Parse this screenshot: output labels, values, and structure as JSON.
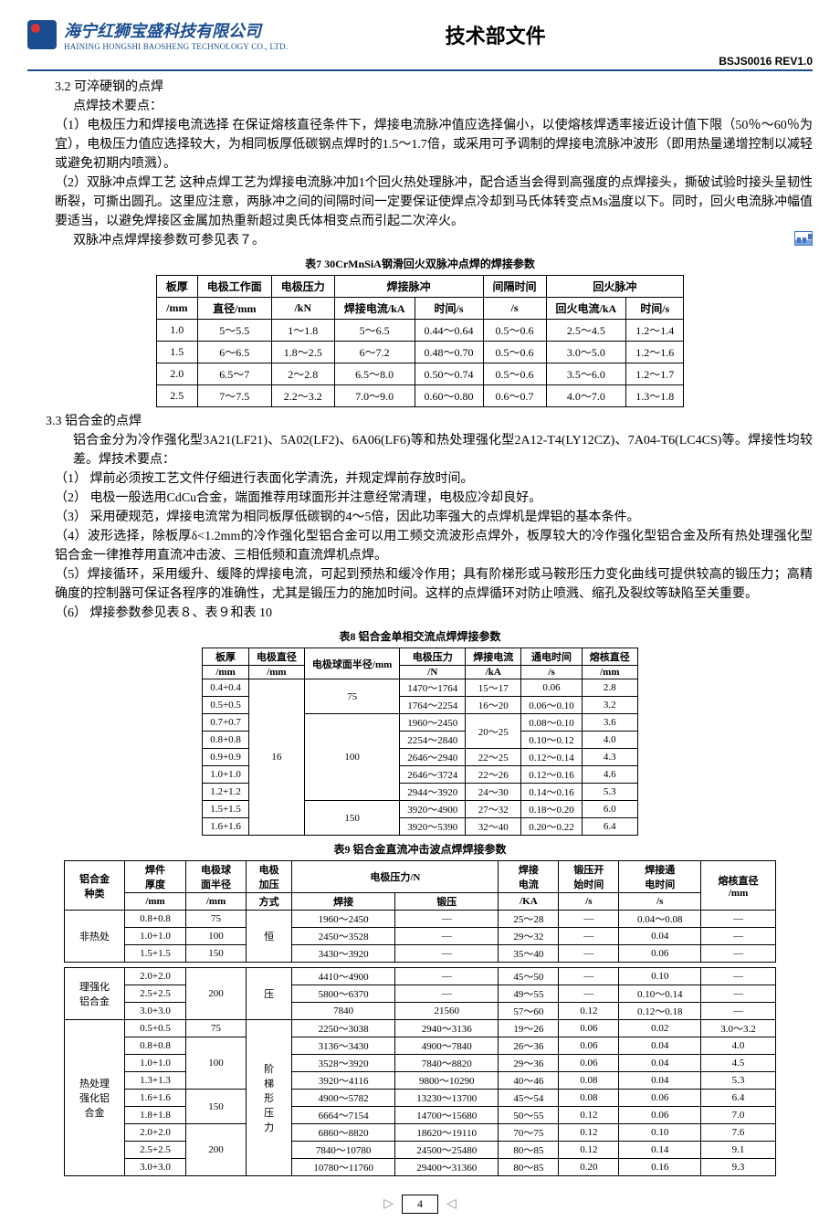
{
  "header": {
    "company_cn": "海宁红狮宝盛科技有限公司",
    "company_en": "HAINING HONGSHI BAOSHENG TECHNOLOGY CO., LTD.",
    "doc_title": "技术部文件",
    "doc_code": "BSJS0016  REV1.0"
  },
  "sec32": {
    "title": "3.2 可淬硬钢的点焊",
    "lead": "点焊技术要点：",
    "p1": "（1）电极压力和焊接电流选择 在保证熔核直径条件下，焊接电流脉冲值应选择偏小，以使熔核焊透率接近设计值下限（50％～60％为宜），电极压力值应选择较大，为相同板厚低碳钢点焊时的1.5～1.7倍，或采用可予调制的焊接电流脉冲波形（即用热量递增控制以减轻或避免初期内喷溅）。",
    "p2": "（2）双脉冲点焊工艺 这种点焊工艺为焊接电流脉冲加1个回火热处理脉冲，配合适当会得到高强度的点焊接头，撕破试验时接头呈韧性断裂，可撕出圆孔。这里应注意，两脉冲之间的间隔时间一定要保证使焊点冷却到马氏体转变点Ms温度以下。同时，回火电流脉冲幅值要适当，以避免焊接区金属加热重新超过奥氏体相变点而引起二次淬火。",
    "p3": "双脉冲点焊焊接参数可参见表７。"
  },
  "table7": {
    "caption": "表7  30CrMnSiA钢滑回火双脉冲点焊的焊接参数",
    "head": {
      "c1a": "板厚",
      "c1b": "/mm",
      "c2a": "电极工作面",
      "c2b": "直径/mm",
      "c3a": "电极压力",
      "c3b": "/kN",
      "g1": "焊接脉冲",
      "c4": "焊接电流/kA",
      "c5": "时间/s",
      "c6a": "间隔时间",
      "c6b": "/s",
      "g2": "回火脉冲",
      "c7": "回火电流/kA",
      "c8": "时间/s"
    },
    "rows": [
      [
        "1.0",
        "5～5.5",
        "1～1.8",
        "5～6.5",
        "0.44～0.64",
        "0.5～0.6",
        "2.5～4.5",
        "1.2～1.4"
      ],
      [
        "1.5",
        "6～6.5",
        "1.8～2.5",
        "6～7.2",
        "0.48～0.70",
        "0.5～0.6",
        "3.0～5.0",
        "1.2～1.6"
      ],
      [
        "2.0",
        "6.5～7",
        "2～2.8",
        "6.5～8.0",
        "0.50～0.74",
        "0.5～0.6",
        "3.5～6.0",
        "1.2～1.7"
      ],
      [
        "2.5",
        "7～7.5",
        "2.2～3.2",
        "7.0～9.0",
        "0.60～0.80",
        "0.6～0.7",
        "4.0～7.0",
        "1.3～1.8"
      ]
    ]
  },
  "sec33": {
    "title": "3.3 铝合金的点焊",
    "p0": "铝合金分为冷作强化型3A21(LF21)、5A02(LF2)、6A06(LF6)等和热处理强化型2A12-T4(LY12CZ)、7A04-T6(LC4CS)等。焊接性均较差。焊技术要点：",
    "p1": "（1） 焊前必须按工艺文件仔细进行表面化学清洗，并规定焊前存放时间。",
    "p2": "（2） 电极一般选用CdCu合金，端面推荐用球面形并注意经常清理，电极应冷却良好。",
    "p3": "（3） 采用硬规范，焊接电流常为相同板厚低碳钢的4～5倍，因此功率强大的点焊机是焊铝的基本条件。",
    "p4": "（4）波形选择，除板厚δ<1.2mm的冷作强化型铝合金可以用工频交流波形点焊外，板厚较大的冷作强化型铝合金及所有热处理强化型铝合金一律推荐用直流冲击波、三相低频和直流焊机点焊。",
    "p5": "（5）焊接循环，采用缓升、缓降的焊接电流，可起到预热和缓冷作用；具有阶梯形或马鞍形压力变化曲线可提供较高的锻压力；高精确度的控制器可保证各程序的准确性，尤其是锻压力的施加时间。这样的点焊循环对防止喷溅、缩孔及裂纹等缺陷至关重要。",
    "p6": "（6） 焊接参数参见表８、表９和表 10"
  },
  "table8": {
    "caption": "表8  铝合金单相交流点焊焊接参数",
    "head": {
      "c1a": "板厚",
      "c1b": "/mm",
      "c2a": "电极直径",
      "c2b": "/mm",
      "c3": "电极球面半径/mm",
      "c4a": "电极压力",
      "c4b": "/N",
      "c5a": "焊接电流",
      "c5b": "/kA",
      "c6a": "通电时间",
      "c6b": "/s",
      "c7a": "熔核直径",
      "c7b": "/mm"
    },
    "rows": [
      {
        "t": "0.4+0.4",
        "ed": null,
        "r": null,
        "p": "1470～1764",
        "i": "15～17",
        "s": "0.06",
        "d": "2.8"
      },
      {
        "t": "0.5+0.5",
        "ed": null,
        "r": "75",
        "p": "1764～2254",
        "i": "16～20",
        "s": "0.06～0.10",
        "d": "3.2"
      },
      {
        "t": "0.7+0.7",
        "ed": null,
        "r": null,
        "p": "1960～2450",
        "i": null,
        "s": "0.08～0.10",
        "d": "3.6"
      },
      {
        "t": "0.8+0.8",
        "ed": null,
        "r": null,
        "p": "2254～2840",
        "i": "20～25",
        "s": "0.10～0.12",
        "d": "4.0"
      },
      {
        "t": "0.9+0.9",
        "ed": "16",
        "r": null,
        "p": "2646～2940",
        "i": "22～25",
        "s": "0.12～0.14",
        "d": "4.3"
      },
      {
        "t": "1.0+1.0",
        "ed": null,
        "r": "100",
        "p": "2646～3724",
        "i": "22～26",
        "s": "0.12～0.16",
        "d": "4.6"
      },
      {
        "t": "1.2+1.2",
        "ed": null,
        "r": null,
        "p": "2944～3920",
        "i": "24～30",
        "s": "0.14～0.16",
        "d": "5.3"
      },
      {
        "t": "1.5+1.5",
        "ed": null,
        "r": null,
        "p": "3920～4900",
        "i": "27～32",
        "s": "0.18～0.20",
        "d": "6.0"
      },
      {
        "t": "1.6+1.6",
        "ed": null,
        "r": "150",
        "p": "3920～5390",
        "i": "32～40",
        "s": "0.20～0.22",
        "d": "6.4"
      }
    ]
  },
  "table9": {
    "caption": "表9  铝合金直流冲击波点焊焊接参数",
    "head": {
      "c1a": "铝合金",
      "c1b": "种类",
      "c2a": "焊件",
      "c2b": "厚度",
      "c2c": "/mm",
      "c3a": "电极球",
      "c3b": "面半径",
      "c3c": "/mm",
      "c4a": "电极",
      "c4b": "加压",
      "c4c": "方式",
      "c5": "电极压力/N",
      "c5a": "焊接",
      "c5b": "锻压",
      "c6a": "焊接",
      "c6b": "电流",
      "c6c": "/KA",
      "c7a": "锻压开",
      "c7b": "始时间",
      "c7c": "/s",
      "c8a": "焊接通",
      "c8b": "电时间",
      "c8c": "/s",
      "c9a": "熔核直径",
      "c9b": "/mm"
    },
    "grp1_label": "非热处",
    "grp1": [
      [
        "0.8+0.8",
        "75",
        "",
        "1960～2450",
        "—",
        "25～28",
        "—",
        "0.04～0.08",
        "—"
      ],
      [
        "1.0+1.0",
        "100",
        "恒",
        "2450～3528",
        "—",
        "29～32",
        "—",
        "0.04",
        "—"
      ],
      [
        "1.5+1.5",
        "150",
        "",
        "3430～3920",
        "—",
        "35～40",
        "—",
        "0.06",
        "—"
      ]
    ],
    "grp2a_label": "理强化",
    "grp2b_label": "铝合金",
    "grp2": [
      [
        "2.0+2.0",
        "",
        "压",
        "4410～4900",
        "—",
        "45～50",
        "—",
        "0.10",
        "—"
      ],
      [
        "2.5+2.5",
        "200",
        "",
        "5800～6370",
        "—",
        "49～55",
        "—",
        "0.10～0.14",
        "—"
      ],
      [
        "3.0+3.0",
        "",
        "",
        "7840",
        "21560",
        "57～60",
        "0.12",
        "0.12～0.18",
        "—"
      ]
    ],
    "grp3a_label": "热处理",
    "grp3b_label": "强化铝",
    "grp3c_label": "合金",
    "grp3": [
      [
        "0.5+0.5",
        "75",
        "",
        "2250～3038",
        "2940～3136",
        "19～26",
        "0.06",
        "0.02",
        "3.0～3.2"
      ],
      [
        "0.8+0.8",
        "",
        "",
        "3136～3430",
        "4900～7840",
        "26～36",
        "0.06",
        "0.04",
        "4.0"
      ],
      [
        "1.0+1.0",
        "100",
        "阶",
        "3528～3920",
        "7840～8820",
        "29～36",
        "0.06",
        "0.04",
        "4.5"
      ],
      [
        "1.3+1.3",
        "",
        "梯",
        "3920～4116",
        "9800～10290",
        "40～46",
        "0.08",
        "0.04",
        "5.3"
      ],
      [
        "1.6+1.6",
        "150",
        "形",
        "4900～5782",
        "13230～13700",
        "45～54",
        "0.08",
        "0.06",
        "6.4"
      ],
      [
        "1.8+1.8",
        "",
        "压",
        "6664～7154",
        "14700～15680",
        "50～55",
        "0.12",
        "0.06",
        "7.0"
      ],
      [
        "2.0+2.0",
        "",
        "力",
        "6860～8820",
        "18620～19110",
        "70～75",
        "0.12",
        "0.10",
        "7.6"
      ],
      [
        "2.5+2.5",
        "200",
        "",
        "7840～10780",
        "24500～25480",
        "80～85",
        "0.12",
        "0.14",
        "9.1"
      ],
      [
        "3.0+3.0",
        "",
        "",
        "10780～11760",
        "29400～31360",
        "80～85",
        "0.20",
        "0.16",
        "9.3"
      ]
    ]
  },
  "footer": {
    "page": "4"
  }
}
